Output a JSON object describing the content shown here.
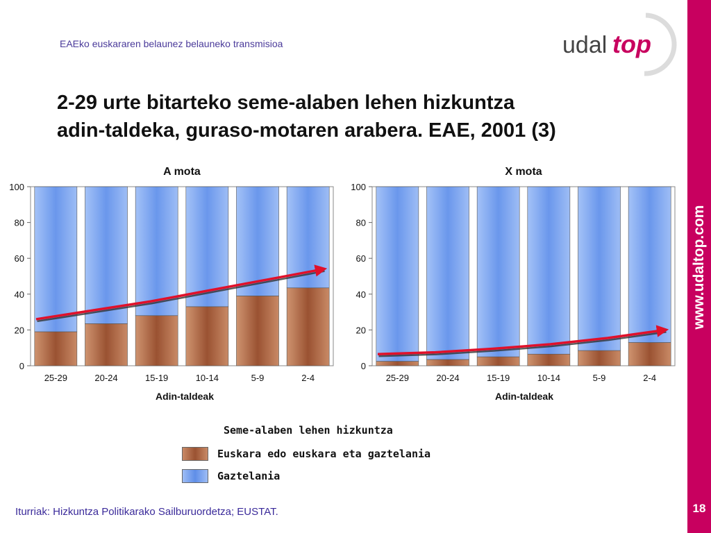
{
  "header": {
    "subtitle": "EAEko euskararen belaunez belauneko transmisioa",
    "logo_left": "udal",
    "logo_right": "top"
  },
  "title": {
    "line1": "2-29 urte bitarteko seme-alaben lehen hizkuntza",
    "line2": "adin-taldeka, guraso-motaren arabera. EAE, 2001 (3)"
  },
  "side": {
    "url": "www.udaltop.com",
    "page_number": "18"
  },
  "footer": {
    "source": "Iturriak: Hizkuntza Politikarako Sailburuordetza; EUSTAT."
  },
  "legend": {
    "title": "Seme-alaben lehen hizkuntza",
    "items": [
      {
        "label": "Euskara edo euskara eta gaztelania",
        "color": "#b86a4a"
      },
      {
        "label": "Gaztelania",
        "color": "#7fa6f0"
      }
    ]
  },
  "colors": {
    "brand": "#c8005f",
    "euskara": "#b86a4a",
    "gaztelania": "#7fa6f0",
    "trend": "#e0102a"
  },
  "chart_data": [
    {
      "type": "bar",
      "stacked": true,
      "title": "A mota",
      "xlabel": "Adin-taldeak",
      "ylabel": "",
      "ylim": [
        0,
        100
      ],
      "yticks": [
        0,
        20,
        40,
        60,
        80,
        100
      ],
      "categories": [
        "25-29",
        "20-24",
        "15-19",
        "10-14",
        "5-9",
        "2-4"
      ],
      "series": [
        {
          "name": "Euskara edo euskara eta gaztelania",
          "values": [
            19,
            23.5,
            28,
            33,
            39,
            43.5
          ]
        },
        {
          "name": "Gaztelania",
          "values": [
            81,
            76.5,
            72,
            67,
            61,
            56.5
          ]
        }
      ],
      "trend": [
        26,
        31,
        36,
        42,
        48,
        54
      ]
    },
    {
      "type": "bar",
      "stacked": true,
      "title": "X mota",
      "xlabel": "Adin-taldeak",
      "ylabel": "",
      "ylim": [
        0,
        100
      ],
      "yticks": [
        0,
        20,
        40,
        60,
        80,
        100
      ],
      "categories": [
        "25-29",
        "20-24",
        "15-19",
        "10-14",
        "5-9",
        "2-4"
      ],
      "series": [
        {
          "name": "Euskara edo euskara eta gaztelania",
          "values": [
            2.5,
            3.5,
            5,
            6.5,
            8.5,
            13
          ]
        },
        {
          "name": "Gaztelania",
          "values": [
            97.5,
            96.5,
            95,
            93.5,
            91.5,
            87
          ]
        }
      ],
      "trend": [
        6.5,
        7.5,
        9.5,
        12,
        15.5,
        20
      ]
    }
  ]
}
